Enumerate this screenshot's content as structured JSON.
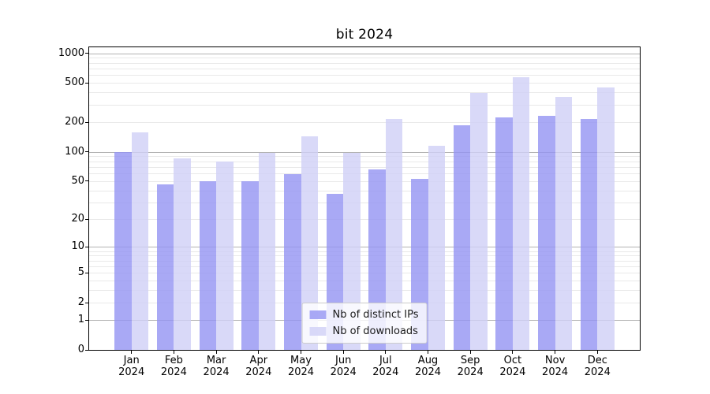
{
  "chart_data": {
    "type": "bar",
    "title": "bit 2024",
    "categories": [
      {
        "month": "Jan",
        "year": "2024"
      },
      {
        "month": "Feb",
        "year": "2024"
      },
      {
        "month": "Mar",
        "year": "2024"
      },
      {
        "month": "Apr",
        "year": "2024"
      },
      {
        "month": "May",
        "year": "2024"
      },
      {
        "month": "Jun",
        "year": "2024"
      },
      {
        "month": "Jul",
        "year": "2024"
      },
      {
        "month": "Aug",
        "year": "2024"
      },
      {
        "month": "Sep",
        "year": "2024"
      },
      {
        "month": "Oct",
        "year": "2024"
      },
      {
        "month": "Nov",
        "year": "2024"
      },
      {
        "month": "Dec",
        "year": "2024"
      }
    ],
    "series": [
      {
        "name": "Nb of distinct IPs",
        "color": "#a9a9f4",
        "fill_rgba": "rgba(147,147,242,0.8)",
        "values": [
          100,
          46,
          50,
          50,
          59,
          37,
          66,
          53,
          185,
          225,
          230,
          217
        ]
      },
      {
        "name": "Nb of downloads",
        "color": "#d8d8f8",
        "fill_rgba": "rgba(207,207,246,0.8)",
        "values": [
          158,
          85,
          79,
          97,
          144,
          97,
          214,
          115,
          398,
          575,
          360,
          452
        ]
      }
    ],
    "y_axis": {
      "scale": "log1p",
      "ticks": [
        0,
        1,
        2,
        5,
        10,
        20,
        50,
        100,
        200,
        500,
        1000
      ],
      "decade_gridlines": [
        1,
        10,
        100,
        1000
      ],
      "top_log_decades": 3.06,
      "ylim": [
        0,
        1147
      ]
    },
    "x_axis": {
      "ticks_per_month": true
    },
    "legend": {
      "position": "lower center"
    },
    "grid": {
      "enabled": true,
      "major_color": "#b2b2b2",
      "minor_color": "#e9e9e9"
    }
  }
}
